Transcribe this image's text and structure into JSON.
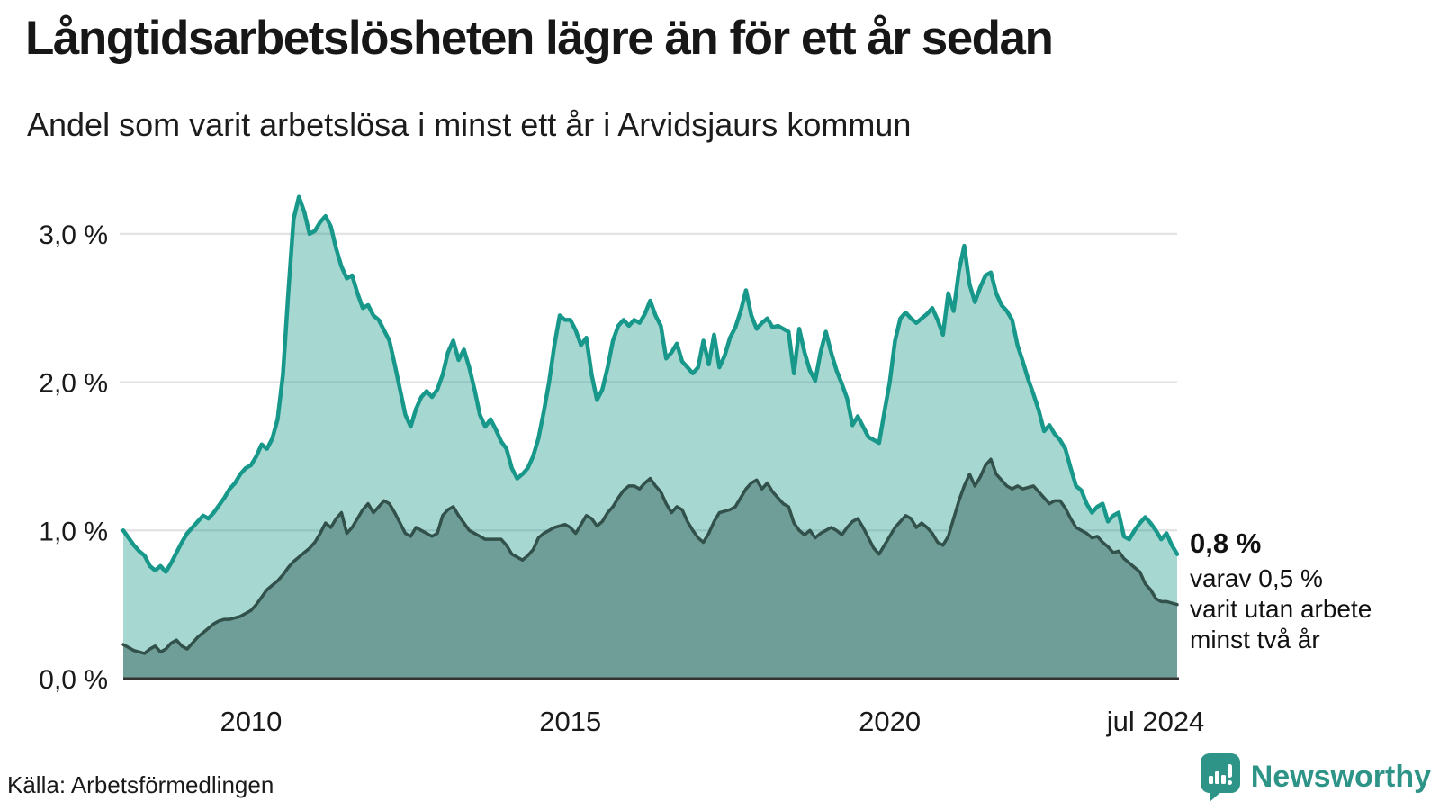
{
  "page": {
    "title": "Långtidsarbetslösheten lägre än för ett år sedan",
    "subtitle": "Andel som varit arbetslösa i minst ett år i Arvidsjaurs kommun",
    "source": "Källa: Arbetsförmedlingen"
  },
  "annotation": {
    "headline": "0,8 %",
    "lines": [
      "varav 0,5 %",
      "varit utan arbete",
      "minst två år"
    ]
  },
  "brand": {
    "name": "Newsworthy",
    "icon": "speech-bubble-bar-chart-icon"
  },
  "colors": {
    "teal_line": "#17988a",
    "teal_fill": "rgba(23,150,134,0.38)",
    "dark_line": "#32514b",
    "dark_fill": "#6f9d97",
    "grid": "#e4e4e7",
    "axis": "#333333",
    "brand": "#2e9487",
    "text": "#1a1a1a"
  },
  "chart_data": {
    "type": "area",
    "title": "Långtidsarbetslösheten lägre än för ett år sedan",
    "subtitle": "Andel som varit arbetslösa i minst ett år i Arvidsjaurs kommun",
    "unit": "%",
    "frequency": "monthly",
    "x_start": "2008-01",
    "x_end": "2024-07",
    "ylim": [
      0,
      3.4
    ],
    "grid": true,
    "legend_position": "none",
    "y_ticks": [
      {
        "value": 0,
        "label": "0,0 %"
      },
      {
        "value": 1,
        "label": "1,0 %"
      },
      {
        "value": 2,
        "label": "2,0 %"
      },
      {
        "value": 3,
        "label": "3,0 %"
      }
    ],
    "x_ticks": [
      {
        "month_index": 24,
        "label": "2010"
      },
      {
        "month_index": 84,
        "label": "2015"
      },
      {
        "month_index": 144,
        "label": "2020"
      },
      {
        "month_index": 198,
        "label": "jul 2024",
        "dx": -24
      }
    ],
    "series": [
      {
        "name": "minst ett år",
        "line_color": "#17988a",
        "fill_color": "rgba(23,150,134,0.38)",
        "last_value_label": "0,8 %",
        "values": [
          1.0,
          0.95,
          0.9,
          0.86,
          0.83,
          0.76,
          0.73,
          0.76,
          0.72,
          0.78,
          0.85,
          0.92,
          0.98,
          1.02,
          1.06,
          1.1,
          1.08,
          1.12,
          1.17,
          1.22,
          1.28,
          1.32,
          1.38,
          1.42,
          1.44,
          1.5,
          1.58,
          1.55,
          1.62,
          1.75,
          2.05,
          2.6,
          3.1,
          3.25,
          3.15,
          3.0,
          3.02,
          3.08,
          3.12,
          3.05,
          2.9,
          2.78,
          2.7,
          2.72,
          2.6,
          2.5,
          2.52,
          2.45,
          2.42,
          2.35,
          2.28,
          2.12,
          1.95,
          1.78,
          1.7,
          1.82,
          1.9,
          1.94,
          1.9,
          1.95,
          2.05,
          2.2,
          2.28,
          2.15,
          2.22,
          2.1,
          1.95,
          1.78,
          1.7,
          1.75,
          1.68,
          1.6,
          1.55,
          1.42,
          1.35,
          1.38,
          1.42,
          1.5,
          1.62,
          1.8,
          2.0,
          2.25,
          2.45,
          2.42,
          2.42,
          2.35,
          2.25,
          2.3,
          2.05,
          1.88,
          1.95,
          2.1,
          2.28,
          2.38,
          2.42,
          2.38,
          2.42,
          2.4,
          2.46,
          2.55,
          2.45,
          2.38,
          2.16,
          2.2,
          2.26,
          2.14,
          2.1,
          2.06,
          2.1,
          2.28,
          2.12,
          2.32,
          2.1,
          2.18,
          2.3,
          2.37,
          2.48,
          2.62,
          2.45,
          2.36,
          2.4,
          2.43,
          2.37,
          2.38,
          2.36,
          2.34,
          2.06,
          2.36,
          2.2,
          2.08,
          2.01,
          2.2,
          2.34,
          2.2,
          2.08,
          1.99,
          1.89,
          1.71,
          1.77,
          1.7,
          1.63,
          1.61,
          1.59,
          1.8,
          2.0,
          2.28,
          2.43,
          2.47,
          2.43,
          2.4,
          2.43,
          2.46,
          2.5,
          2.42,
          2.32,
          2.6,
          2.48,
          2.75,
          2.92,
          2.66,
          2.54,
          2.64,
          2.72,
          2.74,
          2.6,
          2.52,
          2.48,
          2.42,
          2.25,
          2.14,
          2.02,
          1.92,
          1.81,
          1.67,
          1.71,
          1.65,
          1.61,
          1.55,
          1.42,
          1.3,
          1.27,
          1.18,
          1.12,
          1.16,
          1.18,
          1.06,
          1.1,
          1.12,
          0.96,
          0.94,
          1.0,
          1.05,
          1.09,
          1.05,
          1.0,
          0.94,
          0.98,
          0.9,
          0.84
        ]
      },
      {
        "name": "minst två år",
        "line_color": "#32514b",
        "fill_color": "#6f9d97",
        "last_value_label": "0,5 %",
        "values": [
          0.23,
          0.21,
          0.19,
          0.18,
          0.17,
          0.2,
          0.22,
          0.18,
          0.2,
          0.24,
          0.26,
          0.22,
          0.2,
          0.24,
          0.28,
          0.31,
          0.34,
          0.37,
          0.39,
          0.4,
          0.4,
          0.41,
          0.42,
          0.44,
          0.46,
          0.5,
          0.55,
          0.6,
          0.63,
          0.66,
          0.7,
          0.75,
          0.79,
          0.82,
          0.85,
          0.88,
          0.92,
          0.98,
          1.05,
          1.02,
          1.08,
          1.12,
          0.98,
          1.02,
          1.08,
          1.14,
          1.18,
          1.12,
          1.16,
          1.2,
          1.18,
          1.12,
          1.05,
          0.98,
          0.96,
          1.02,
          1.0,
          0.98,
          0.96,
          0.98,
          1.1,
          1.14,
          1.16,
          1.1,
          1.05,
          1.0,
          0.98,
          0.96,
          0.94,
          0.94,
          0.94,
          0.94,
          0.9,
          0.84,
          0.82,
          0.8,
          0.83,
          0.87,
          0.95,
          0.98,
          1.0,
          1.02,
          1.03,
          1.04,
          1.02,
          0.98,
          1.04,
          1.1,
          1.08,
          1.03,
          1.06,
          1.12,
          1.16,
          1.22,
          1.27,
          1.3,
          1.3,
          1.28,
          1.32,
          1.35,
          1.3,
          1.26,
          1.18,
          1.12,
          1.16,
          1.14,
          1.06,
          1.0,
          0.95,
          0.92,
          0.98,
          1.06,
          1.12,
          1.13,
          1.14,
          1.16,
          1.22,
          1.28,
          1.32,
          1.34,
          1.28,
          1.32,
          1.26,
          1.22,
          1.18,
          1.16,
          1.05,
          1.0,
          0.97,
          1.0,
          0.95,
          0.98,
          1.0,
          1.02,
          1.0,
          0.97,
          1.02,
          1.06,
          1.08,
          1.02,
          0.95,
          0.88,
          0.84,
          0.9,
          0.96,
          1.02,
          1.06,
          1.1,
          1.08,
          1.02,
          1.05,
          1.02,
          0.98,
          0.92,
          0.9,
          0.96,
          1.08,
          1.2,
          1.3,
          1.38,
          1.3,
          1.36,
          1.44,
          1.48,
          1.38,
          1.34,
          1.3,
          1.28,
          1.3,
          1.28,
          1.29,
          1.3,
          1.26,
          1.22,
          1.18,
          1.2,
          1.2,
          1.15,
          1.08,
          1.02,
          1.0,
          0.98,
          0.95,
          0.96,
          0.92,
          0.89,
          0.85,
          0.86,
          0.81,
          0.78,
          0.75,
          0.72,
          0.64,
          0.6,
          0.54,
          0.52,
          0.52,
          0.51,
          0.5
        ]
      }
    ]
  }
}
